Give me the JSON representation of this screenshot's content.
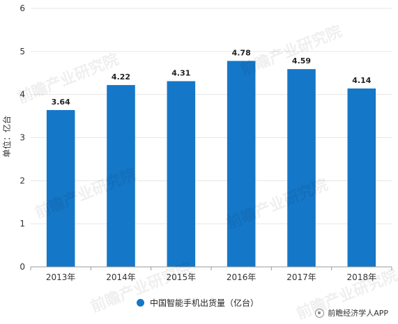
{
  "chart_data": {
    "type": "bar",
    "categories": [
      "2013年",
      "2014年",
      "2015年",
      "2016年",
      "2017年",
      "2018年"
    ],
    "series": [
      {
        "name": "中国智能手机出货量（亿台）",
        "values": [
          3.64,
          4.22,
          4.31,
          4.78,
          4.59,
          4.14
        ]
      }
    ],
    "data_labels": [
      "3.64",
      "4.22",
      "4.31",
      "4.78",
      "4.59",
      "4.14"
    ],
    "ylabel": "单位：亿台",
    "xlabel": "",
    "ylim": [
      0,
      6
    ],
    "yticks": [
      "0",
      "1",
      "2",
      "3",
      "4",
      "5",
      "6"
    ],
    "grid": true,
    "legend_position": "bottom",
    "bar_color": "#1577C8"
  },
  "legend": {
    "label": "中国智能手机出货量（亿台）"
  },
  "watermark_text": "前瞻产业研究院",
  "brand": {
    "label": "前瞻经济学人APP",
    "icon": "brand-logo-icon"
  }
}
